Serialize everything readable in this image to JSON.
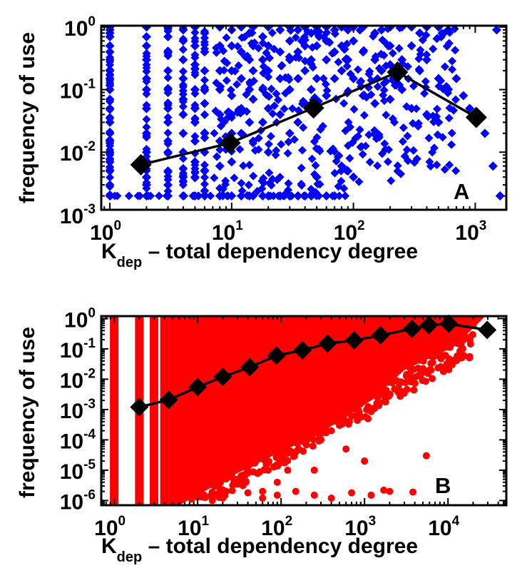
{
  "figure": {
    "panels": [
      "A",
      "B"
    ]
  },
  "chart_data": [
    {
      "type": "scatter",
      "panel_label": "A",
      "xlabel": {
        "main": "K",
        "subscript": "dep",
        "rest": " – total dependency degree"
      },
      "ylabel": "frequency of use",
      "x_scale": "log",
      "y_scale": "log",
      "xlim": [
        0.85,
        1800
      ],
      "ylim": [
        0.0012,
        1.05
      ],
      "x_ticks": [
        {
          "value": 1,
          "base": "10",
          "exp": "0"
        },
        {
          "value": 10,
          "base": "10",
          "exp": "1"
        },
        {
          "value": 100,
          "base": "10",
          "exp": "2"
        },
        {
          "value": 1000,
          "base": "10",
          "exp": "3"
        }
      ],
      "y_ticks": [
        {
          "value": 0.001,
          "base": "10",
          "exp": "-3"
        },
        {
          "value": 0.01,
          "base": "10",
          "exp": "-2"
        },
        {
          "value": 0.1,
          "base": "10",
          "exp": "-1"
        },
        {
          "value": 1,
          "base": "10",
          "exp": "0"
        }
      ],
      "grid": false,
      "series": [
        {
          "marker": "diamond",
          "color": "#0000ff",
          "style": "points",
          "x": [
            1,
            1,
            1,
            1,
            1,
            1,
            1,
            1,
            1,
            1,
            1,
            1,
            1,
            1,
            1,
            1,
            1,
            1,
            1,
            1,
            2,
            2,
            2,
            2,
            2,
            2,
            2,
            2,
            2,
            2,
            2,
            2,
            2,
            3,
            3,
            3,
            3,
            3,
            3,
            3,
            3,
            3,
            3,
            3,
            3,
            4,
            4,
            4,
            4,
            4,
            4,
            4,
            4,
            4,
            4,
            5,
            5,
            5,
            5,
            5,
            5,
            5,
            5,
            5,
            5,
            6,
            6,
            6,
            6,
            6,
            6,
            6,
            6,
            6,
            8,
            8,
            8,
            8,
            8,
            8,
            8,
            8,
            10,
            10,
            10,
            10,
            10,
            10,
            10,
            10,
            12,
            12,
            12,
            12,
            12,
            12,
            14,
            14,
            14,
            14,
            14,
            15,
            15,
            15,
            15,
            15,
            15,
            18,
            18,
            18,
            18,
            18,
            20,
            20,
            20,
            20,
            20,
            20,
            25,
            25,
            25,
            25,
            25,
            30,
            30,
            30,
            30,
            30,
            30,
            35,
            35,
            35,
            35,
            35,
            40,
            40,
            40,
            40,
            40,
            45,
            45,
            45,
            45,
            50,
            50,
            50,
            50,
            60,
            60,
            60,
            60,
            60,
            70,
            70,
            70,
            70,
            80,
            80,
            80,
            80,
            90,
            90,
            90,
            100,
            100,
            100,
            100,
            120,
            120,
            120,
            150,
            150,
            150,
            170,
            170,
            200,
            200,
            200,
            200,
            250,
            250,
            250,
            300,
            300,
            300,
            350,
            350,
            400,
            400,
            400,
            500,
            500,
            500,
            600,
            600,
            700,
            800,
            900,
            1000,
            1200,
            1400,
            1500,
            1600
          ],
          "y": [
            1,
            0.9,
            0.8,
            0.7,
            0.5,
            0.4,
            0.3,
            0.2,
            0.15,
            0.1,
            0.07,
            0.05,
            0.03,
            0.02,
            0.015,
            0.01,
            0.007,
            0.005,
            0.003,
            0.002,
            1,
            0.7,
            0.5,
            0.3,
            0.15,
            0.1,
            0.05,
            0.02,
            0.01,
            0.007,
            0.004,
            0.003,
            0.002,
            1,
            0.7,
            0.4,
            0.2,
            0.1,
            0.05,
            0.03,
            0.015,
            0.01,
            0.005,
            0.003,
            0.002,
            0.9,
            0.6,
            0.3,
            0.15,
            0.07,
            0.04,
            0.02,
            0.01,
            0.004,
            0.002,
            1,
            0.5,
            0.25,
            0.1,
            0.05,
            0.03,
            0.015,
            0.007,
            0.004,
            0.002,
            0.8,
            0.4,
            0.2,
            0.1,
            0.06,
            0.02,
            0.01,
            0.005,
            0.002,
            1,
            0.5,
            0.2,
            0.1,
            0.04,
            0.015,
            0.006,
            0.002,
            0.9,
            0.5,
            0.2,
            0.08,
            0.04,
            0.02,
            0.007,
            0.002,
            1,
            0.4,
            0.15,
            0.05,
            0.02,
            0.002,
            0.8,
            0.3,
            0.1,
            0.03,
            0.002,
            1,
            0.5,
            0.2,
            0.07,
            0.015,
            0.002,
            0.7,
            0.3,
            0.1,
            0.03,
            0.002,
            1,
            0.5,
            0.2,
            0.05,
            0.01,
            0.002,
            0.9,
            0.4,
            0.15,
            0.04,
            0.002,
            1,
            0.6,
            0.3,
            0.1,
            0.02,
            0.002,
            0.9,
            0.4,
            0.15,
            0.03,
            0.002,
            1,
            0.5,
            0.2,
            0.06,
            0.002,
            0.8,
            0.3,
            0.1,
            0.002,
            1,
            0.5,
            0.15,
            0.004,
            1,
            0.6,
            0.3,
            0.08,
            0.002,
            0.9,
            0.4,
            0.15,
            0.002,
            1,
            0.5,
            0.2,
            0.006,
            0.9,
            0.3,
            0.005,
            1,
            0.6,
            0.15,
            0.004,
            1,
            0.4,
            0.08,
            0.8,
            0.3,
            0.06,
            0.9,
            0.2,
            1,
            0.5,
            0.25,
            0.07,
            1,
            0.3,
            0.1,
            1,
            0.5,
            0.05,
            0.8,
            0.2,
            1,
            0.3,
            0.04,
            1,
            0.15,
            0.03,
            0.9,
            0.1,
            0.15,
            0.08,
            0.05,
            0.03,
            0.02,
            0.006,
            0.9,
            0.002
          ]
        },
        {
          "marker": "diamond-large",
          "color": "#000000",
          "style": "line+markers",
          "x": [
            1.8,
            9.7,
            47,
            230,
            1020
          ],
          "y": [
            0.0063,
            0.014,
            0.051,
            0.19,
            0.036
          ]
        }
      ]
    },
    {
      "type": "scatter",
      "panel_label": "B",
      "xlabel": {
        "main": "K",
        "subscript": "dep",
        "rest": " – total dependency degree"
      },
      "ylabel": "frequency of use",
      "x_scale": "log",
      "y_scale": "log",
      "xlim": [
        0.7,
        50000
      ],
      "ylim": [
        7e-07,
        1.2
      ],
      "x_ticks": [
        {
          "value": 1,
          "base": "10",
          "exp": "0"
        },
        {
          "value": 10,
          "base": "10",
          "exp": "1"
        },
        {
          "value": 100,
          "base": "10",
          "exp": "2"
        },
        {
          "value": 1000,
          "base": "10",
          "exp": "3"
        },
        {
          "value": 10000,
          "base": "10",
          "exp": "4"
        }
      ],
      "y_ticks": [
        {
          "value": 1e-06,
          "base": "10",
          "exp": "-6"
        },
        {
          "value": 1e-05,
          "base": "10",
          "exp": "-5"
        },
        {
          "value": 0.0001,
          "base": "10",
          "exp": "-4"
        },
        {
          "value": 0.001,
          "base": "10",
          "exp": "-3"
        },
        {
          "value": 0.01,
          "base": "10",
          "exp": "-2"
        },
        {
          "value": 0.1,
          "base": "10",
          "exp": "-1"
        },
        {
          "value": 1,
          "base": "10",
          "exp": "0"
        }
      ],
      "grid": false,
      "series": [
        {
          "marker": "dot",
          "color": "#ff0000",
          "style": "points",
          "x": [
            7,
            8,
            9,
            10,
            12,
            14,
            15,
            18,
            20,
            22,
            25,
            30,
            35,
            40,
            50,
            60,
            70,
            90,
            100,
            120,
            150,
            200,
            250,
            300,
            400,
            500,
            600,
            700,
            800,
            1000,
            1100,
            1200,
            1500,
            2000,
            2500,
            3000,
            4000,
            5000,
            3500,
            1800,
            1000,
            6000,
            8000,
            10000,
            15000,
            20000,
            30000,
            1700,
            3800,
            5500,
            12,
            20,
            40,
            60,
            90,
            150,
            250,
            400,
            700,
            1200,
            2000,
            5,
            6,
            10,
            15
          ],
          "y": [
            0.0002,
            0.0001,
            4e-05,
            2e-05,
            1e-05,
            6e-06,
            3e-05,
            4e-06,
            2e-05,
            2e-06,
            1e-05,
            5e-06,
            3e-05,
            8e-06,
            2e-05,
            2e-06,
            1e-05,
            4e-06,
            3e-05,
            1e-05,
            4e-05,
            7e-05,
            1e-05,
            0.0001,
            0.0002,
            0.0003,
            5e-05,
            0.0006,
            0.001,
            2e-05,
            0.0005,
            0.003,
            0.005,
            0.01,
            0.03,
            0.05,
            0.08,
            0.2,
            0.15,
            0.003,
            2e-05,
            0.4,
            0.7,
            0.9,
            0.8,
            0.6,
            0.4,
            2.2e-06,
            1.9e-06,
            3e-05,
            1.5e-06,
            1.2e-06,
            1.8e-06,
            1.2e-06,
            1.5e-06,
            2e-06,
            1.5e-06,
            1.2e-06,
            1.8e-06,
            1.5e-06,
            2e-06,
            1e-06,
            1e-06,
            1.3e-06,
            1e-06
          ]
        },
        {
          "marker": "diamond-large",
          "color": "#000000",
          "style": "line+markers",
          "x": [
            2,
            4.5,
            10,
            20,
            42,
            88,
            180,
            360,
            750,
            1550,
            3700,
            5900,
            10200,
            29500
          ],
          "y": [
            0.0012,
            0.0021,
            0.0055,
            0.012,
            0.025,
            0.06,
            0.09,
            0.15,
            0.19,
            0.28,
            0.46,
            0.61,
            0.67,
            0.42
          ]
        }
      ]
    }
  ]
}
